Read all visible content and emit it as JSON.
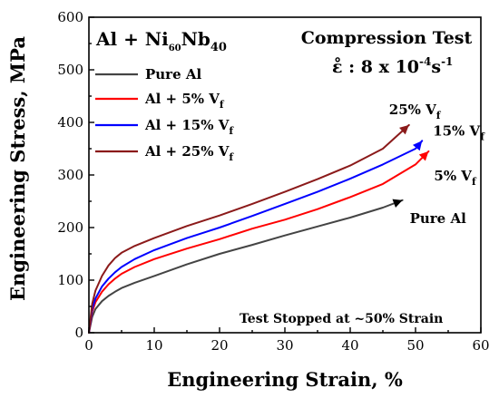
{
  "chart_data": {
    "type": "line",
    "xlabel": "Engineering Strain, %",
    "ylabel": "Engineering Stress, MPa",
    "xlim": [
      0,
      60
    ],
    "ylim": [
      0,
      600
    ],
    "xticks": [
      0,
      10,
      20,
      30,
      40,
      50,
      60
    ],
    "yticks": [
      0,
      100,
      200,
      300,
      400,
      500,
      600
    ],
    "grid": false,
    "legend_position": "top-left",
    "legend_title": {
      "base": "Al + Ni",
      "sub1": "60",
      "mid": "Nb",
      "sub2": "40"
    },
    "test_info": {
      "line1": "Compression Test",
      "rate_prefix": "ε̊ : 8 x 10",
      "rate_exp1": "-4",
      "rate_unit": "s",
      "rate_exp2": "-1"
    },
    "note": "Test Stopped at ~50% Strain",
    "series": [
      {
        "name": "Pure Al",
        "legend_label": {
          "base": "Pure Al",
          "sub": ""
        },
        "end_label": {
          "base": "Pure Al",
          "sub": ""
        },
        "color": "#444444",
        "x": [
          0,
          0.5,
          1,
          2,
          3,
          4,
          5,
          7,
          10,
          15,
          20,
          25,
          30,
          35,
          40,
          45,
          48
        ],
        "y": [
          0,
          30,
          45,
          60,
          70,
          78,
          85,
          95,
          108,
          130,
          150,
          167,
          185,
          202,
          219,
          238,
          252
        ]
      },
      {
        "name": "Al + 5% Vf",
        "legend_label": {
          "base": "Al + 5% V",
          "sub": "f"
        },
        "end_label": {
          "base": "5% V",
          "sub": "f"
        },
        "color": "#ff0000",
        "x": [
          0,
          0.5,
          1,
          2,
          3,
          4,
          5,
          7,
          10,
          15,
          20,
          25,
          30,
          35,
          40,
          45,
          50,
          52
        ],
        "y": [
          0,
          40,
          58,
          78,
          92,
          103,
          112,
          125,
          140,
          160,
          178,
          198,
          215,
          235,
          258,
          283,
          320,
          345
        ]
      },
      {
        "name": "Al + 15% Vf",
        "legend_label": {
          "base": "Al + 15% V",
          "sub": "f"
        },
        "end_label": {
          "base": "15% V",
          "sub": "f"
        },
        "color": "#0000ff",
        "x": [
          0,
          0.5,
          1,
          2,
          3,
          4,
          5,
          7,
          10,
          15,
          20,
          25,
          30,
          35,
          40,
          45,
          50,
          51
        ],
        "y": [
          0,
          45,
          65,
          88,
          103,
          115,
          125,
          140,
          157,
          180,
          200,
          222,
          245,
          268,
          293,
          320,
          350,
          365
        ]
      },
      {
        "name": "Al + 25% Vf",
        "legend_label": {
          "base": "Al + 25% V",
          "sub": "f"
        },
        "end_label": {
          "base": "25% V",
          "sub": "f"
        },
        "color": "#8b1a1a",
        "x": [
          0,
          0.5,
          1,
          2,
          3,
          4,
          5,
          7,
          10,
          15,
          20,
          25,
          30,
          35,
          40,
          45,
          49
        ],
        "y": [
          0,
          55,
          80,
          108,
          128,
          142,
          152,
          165,
          180,
          203,
          223,
          245,
          268,
          292,
          318,
          350,
          395
        ]
      }
    ]
  }
}
